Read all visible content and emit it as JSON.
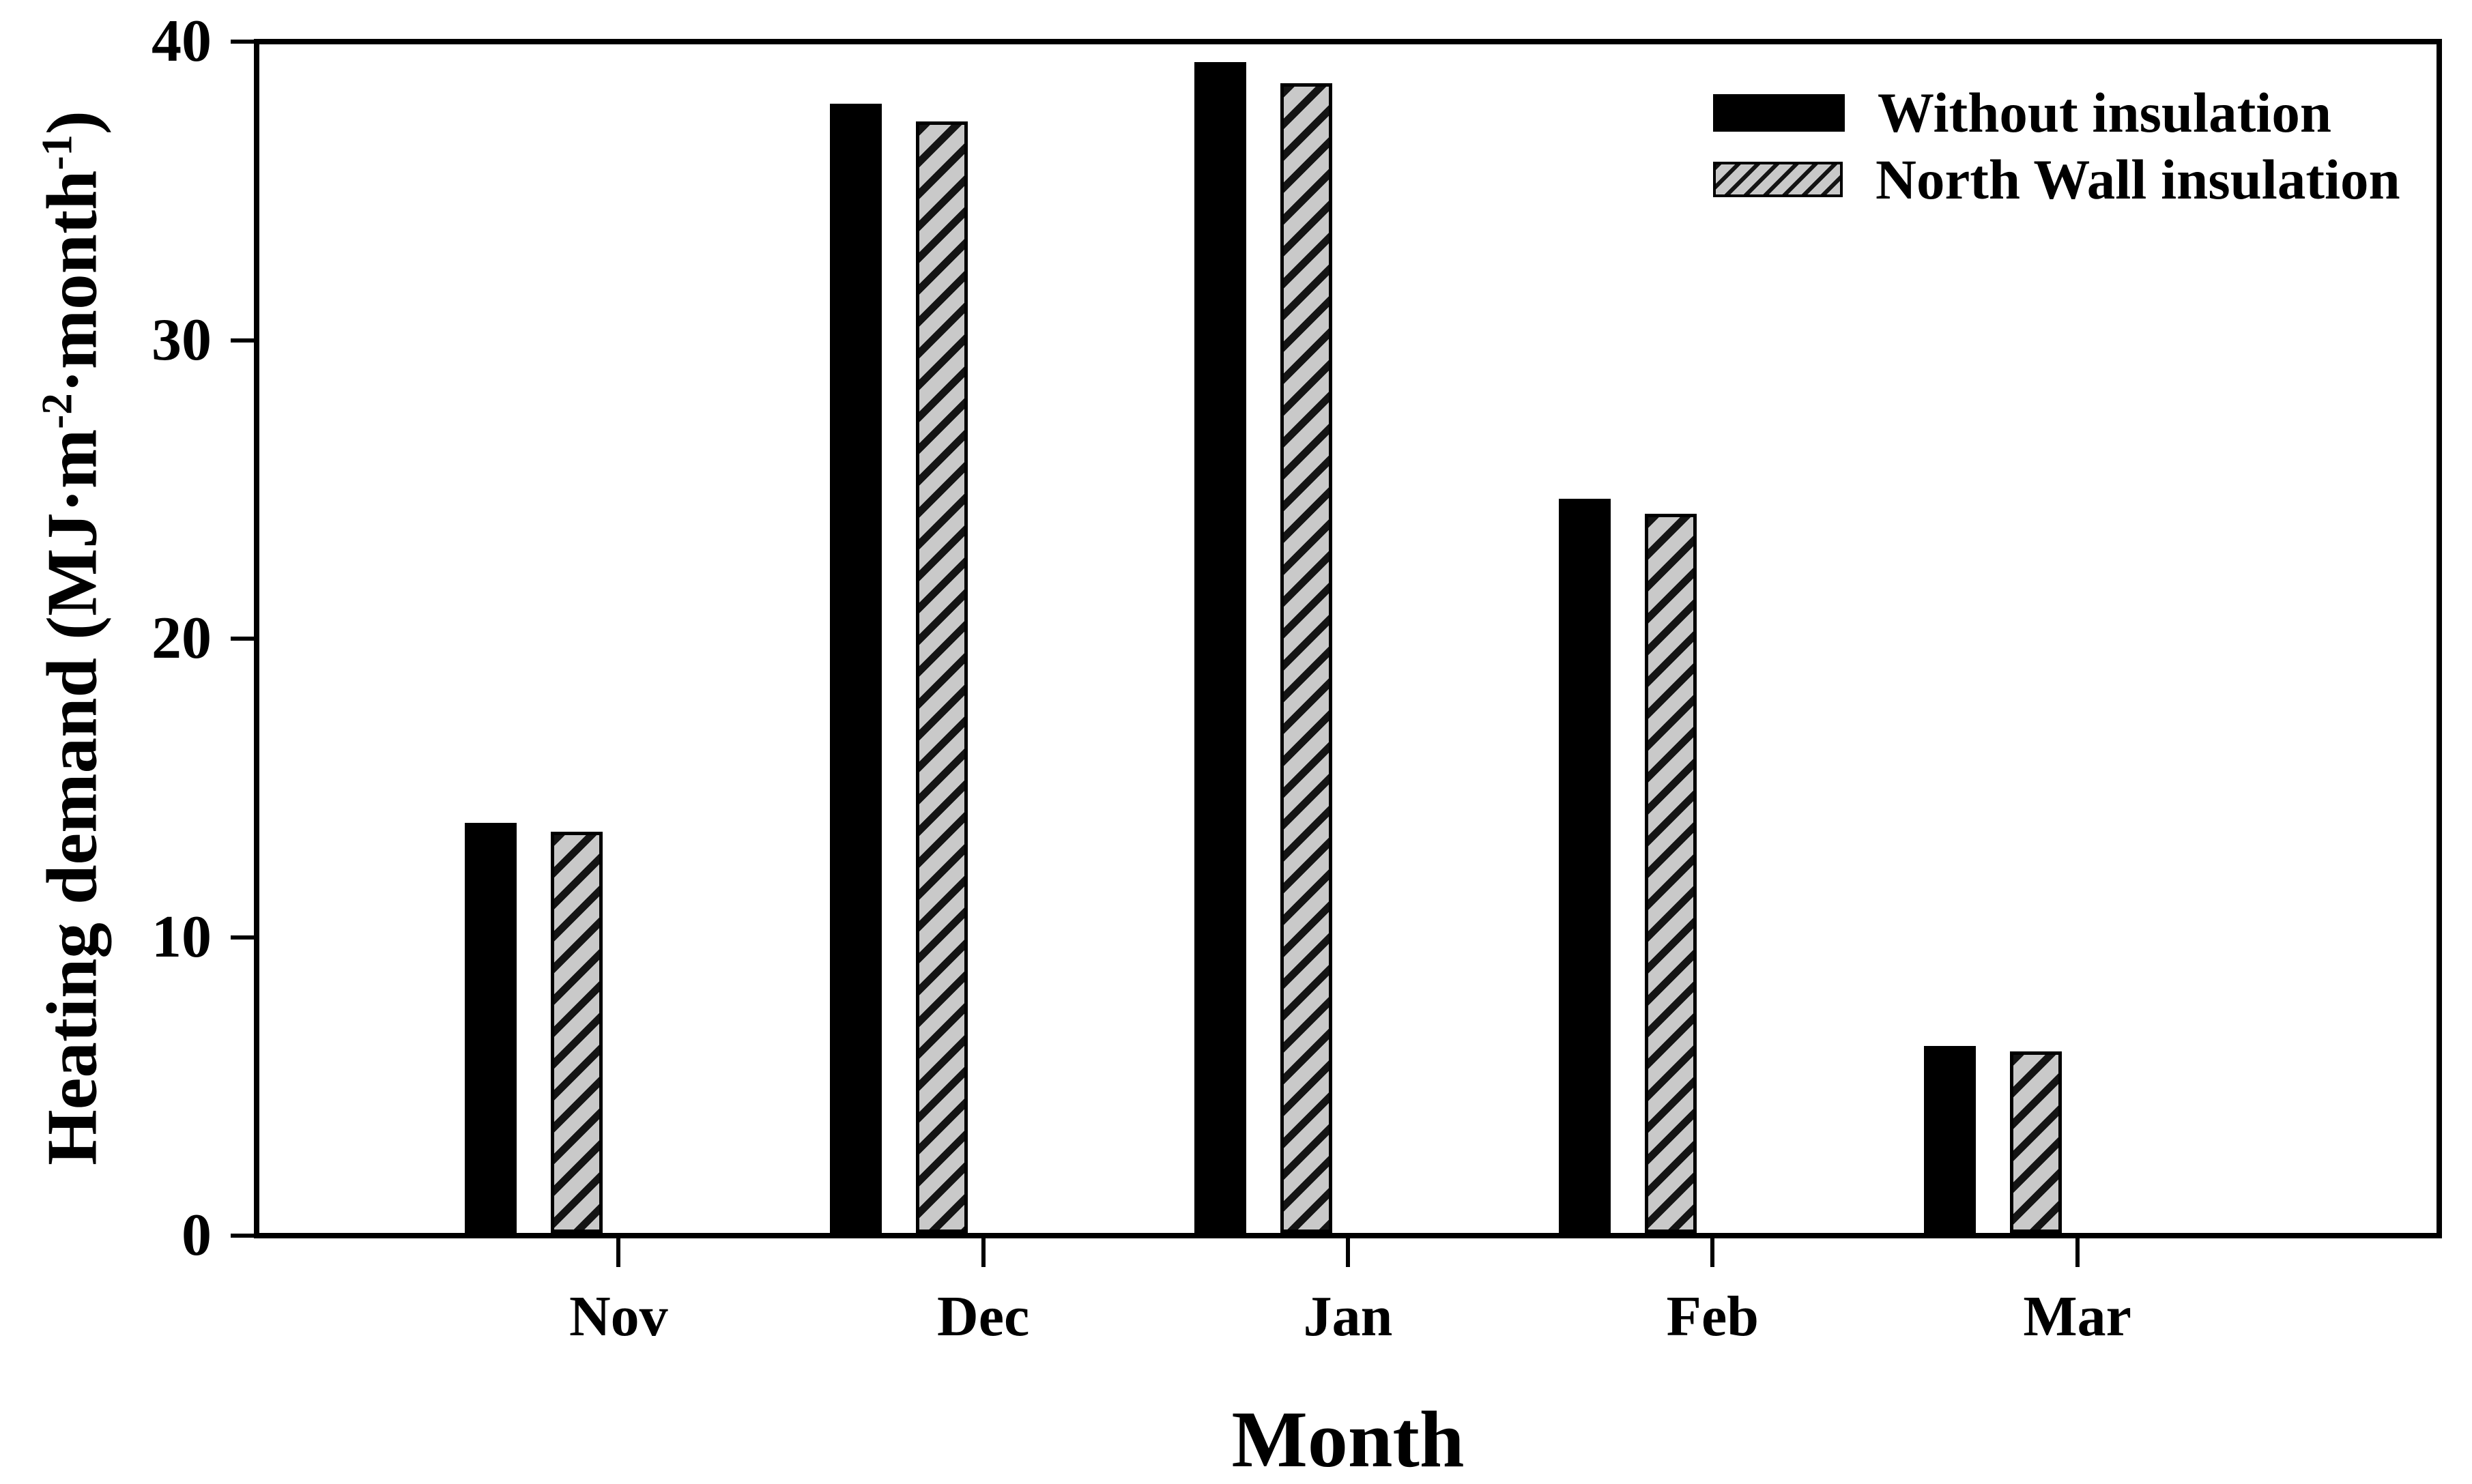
{
  "chart_data": {
    "type": "bar",
    "categories": [
      "Nov",
      "Dec",
      "Jan",
      "Feb",
      "Mar"
    ],
    "series": [
      {
        "name": "Without insulation",
        "style": "solid-black",
        "values": [
          13.8,
          38.0,
          39.4,
          24.7,
          6.3
        ]
      },
      {
        "name": "North Wall insulation",
        "style": "gray-diagonal-hatch",
        "values": [
          13.5,
          37.4,
          38.7,
          24.2,
          6.1
        ]
      }
    ],
    "title": "",
    "xlabel": "Month",
    "ylabel": "Heating demand (MJ·m⁻²·month⁻¹)",
    "ylabel_parts": {
      "pre": "Heating demand (MJ·m",
      "sup1": "-2",
      "mid": "·month",
      "sup2": "-1",
      "post": ")"
    },
    "ylim": [
      0,
      40
    ],
    "y_ticks": [
      0,
      10,
      20,
      30,
      40
    ],
    "grid": false,
    "legend_position": "top-right",
    "colors": {
      "bar_black": "#000000",
      "hatch_fill": "#c9c9c9",
      "hatch_line": "#141414",
      "frame": "#000000",
      "background": "#ffffff",
      "text": "#000000"
    }
  },
  "x_axis": {
    "title": "Month",
    "tick_labels": [
      "Nov",
      "Dec",
      "Jan",
      "Feb",
      "Mar"
    ]
  },
  "y_axis": {
    "tick_labels": [
      "0",
      "10",
      "20",
      "30",
      "40"
    ]
  },
  "legend": {
    "items": [
      {
        "label": "Without insulation",
        "swatch": "solid-black"
      },
      {
        "label": "North Wall insulation",
        "swatch": "hatched"
      }
    ]
  }
}
